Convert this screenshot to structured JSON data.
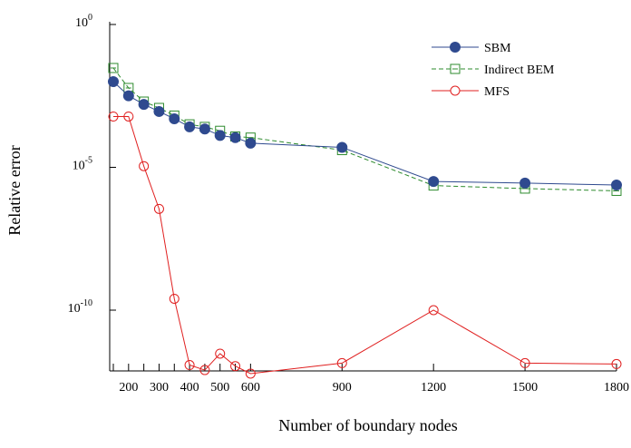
{
  "chart_data": {
    "type": "line",
    "xlabel": "Number of boundary nodes",
    "ylabel": "Relative error",
    "y_scale": "log",
    "ylim_exponents": [
      0,
      -12
    ],
    "xlim": [
      150,
      1800
    ],
    "x_ticks": [
      200,
      300,
      400,
      500,
      600,
      900,
      1200,
      1500,
      1800
    ],
    "x_tick_labels": [
      "200",
      "300",
      "400",
      "500",
      "600",
      "900",
      "1200",
      "1500",
      "1800"
    ],
    "x_minor_ticks": [
      150,
      250,
      350,
      450,
      550
    ],
    "y_ticks": [
      {
        "base": "10",
        "exp": "0",
        "value": 1
      },
      {
        "base": "10",
        "exp": "-5",
        "value": 1e-05
      },
      {
        "base": "10",
        "exp": "-10",
        "value": 1e-10
      }
    ],
    "grid": false,
    "legend_position": "top-right",
    "x": [
      150,
      200,
      250,
      300,
      350,
      400,
      450,
      500,
      550,
      600,
      900,
      1200,
      1500,
      1800
    ],
    "series": [
      {
        "name": "SBM",
        "color": "#2f4a8f",
        "line_style": "solid",
        "marker": "filled-circle",
        "values": [
          0.01,
          0.0032,
          0.0016,
          0.0009,
          0.0005,
          0.00026,
          0.00022,
          0.00013,
          0.00011,
          7e-05,
          5e-05,
          3.2e-06,
          2.8e-06,
          2.4e-06
        ]
      },
      {
        "name": "Indirect BEM",
        "color": "#2e8b2e",
        "line_style": "dashed",
        "marker": "open-square",
        "values": [
          0.03,
          0.006,
          0.002,
          0.0012,
          0.00065,
          0.00032,
          0.00026,
          0.00019,
          0.00012,
          0.00011,
          4e-05,
          2.3e-06,
          1.8e-06,
          1.5e-06
        ]
      },
      {
        "name": "MFS",
        "color": "#e02020",
        "line_style": "solid",
        "marker": "open-circle",
        "values": [
          0.0006,
          0.0006,
          1.1e-05,
          3.5e-07,
          2.5e-10,
          1.2e-12,
          8e-13,
          3e-12,
          1.1e-12,
          6e-13,
          1.4e-12,
          1e-10,
          1.4e-12,
          1.3e-12
        ]
      }
    ]
  }
}
